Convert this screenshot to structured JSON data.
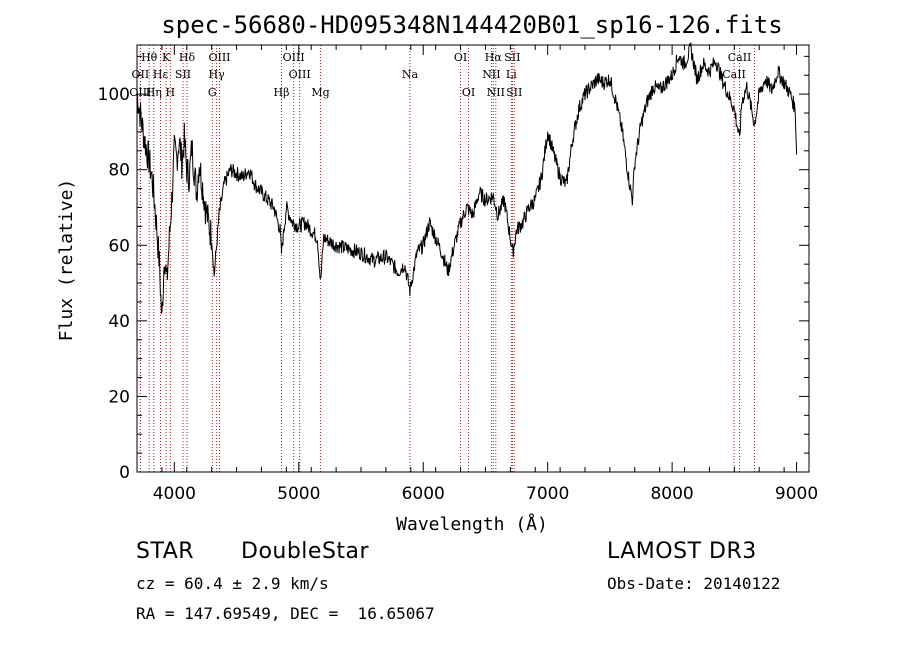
{
  "chart_data": {
    "type": "line",
    "title": "spec-56680-HD095348N144420B01_sp16-126.fits",
    "xlabel": "Wavelength (Å)",
    "ylabel": "Flux (relative)",
    "xlim": [
      3700,
      9100
    ],
    "ylim": [
      0,
      113
    ],
    "xticks": [
      4000,
      5000,
      6000,
      7000,
      8000,
      9000
    ],
    "yticks": [
      0,
      20,
      40,
      60,
      80,
      100
    ],
    "grid": false,
    "series": [
      {
        "x": [
          3700,
          3720,
          3740,
          3760,
          3780,
          3800,
          3820,
          3840,
          3860,
          3880,
          3900,
          3920,
          3940,
          3960,
          3980,
          4000,
          4020,
          4040,
          4060,
          4080,
          4100,
          4120,
          4140,
          4160,
          4180,
          4200,
          4250,
          4300,
          4320,
          4340,
          4360,
          4400,
          4450,
          4500,
          4550,
          4600,
          4650,
          4700,
          4750,
          4800,
          4850,
          4861,
          4900,
          4950,
          5000,
          5050,
          5100,
          5150,
          5175,
          5200,
          5300,
          5400,
          5500,
          5600,
          5700,
          5800,
          5850,
          5893,
          5950,
          6000,
          6050,
          6100,
          6150,
          6200,
          6250,
          6300,
          6350,
          6400,
          6450,
          6500,
          6563,
          6600,
          6650,
          6700,
          6720,
          6750,
          6800,
          6850,
          6900,
          6950,
          7000,
          7050,
          7100,
          7150,
          7200,
          7250,
          7300,
          7350,
          7400,
          7450,
          7500,
          7550,
          7600,
          7650,
          7680,
          7700,
          7750,
          7800,
          7850,
          7900,
          7950,
          8000,
          8050,
          8100,
          8150,
          8200,
          8250,
          8300,
          8350,
          8400,
          8450,
          8500,
          8542,
          8560,
          8600,
          8662,
          8700,
          8750,
          8800,
          8850,
          8900,
          8950,
          8990,
          9000
        ],
        "y": [
          100,
          96,
          92,
          88,
          85,
          82,
          78,
          72,
          64,
          55,
          40,
          58,
          50,
          62,
          72,
          85,
          83,
          88,
          82,
          88,
          80,
          78,
          86,
          80,
          74,
          82,
          70,
          62,
          52,
          60,
          68,
          76,
          80,
          79,
          78,
          80,
          76,
          74,
          72,
          70,
          64,
          58,
          70,
          66,
          65,
          66,
          64,
          62,
          50,
          62,
          60,
          59,
          58,
          56,
          57,
          53,
          55,
          48,
          58,
          60,
          66,
          62,
          58,
          53,
          60,
          66,
          70,
          68,
          74,
          72,
          73,
          68,
          72,
          62,
          58,
          64,
          66,
          70,
          72,
          78,
          90,
          84,
          78,
          76,
          88,
          96,
          100,
          102,
          104,
          103,
          104,
          98,
          90,
          78,
          72,
          82,
          92,
          98,
          102,
          101,
          103,
          105,
          110,
          108,
          112,
          104,
          108,
          106,
          109,
          104,
          100,
          96,
          88,
          98,
          102,
          92,
          100,
          104,
          101,
          106,
          103,
          100,
          96,
          84
        ]
      }
    ],
    "spectral_lines": [
      {
        "label": "Hθ",
        "x": 3798,
        "row": 0
      },
      {
        "label": "OII",
        "x": 3727,
        "row": 1
      },
      {
        "label": "OIII",
        "x": 3727,
        "row": 2
      },
      {
        "label": "K",
        "x": 3934,
        "row": 0
      },
      {
        "label": "Hε",
        "x": 3889,
        "row": 1
      },
      {
        "label": "Hη",
        "x": 3835,
        "row": 2
      },
      {
        "label": "H",
        "x": 3968,
        "row": 2
      },
      {
        "label": "SII",
        "x": 4070,
        "row": 1
      },
      {
        "label": "Hδ",
        "x": 4102,
        "row": 0
      },
      {
        "label": "OIII",
        "x": 4363,
        "row": 0
      },
      {
        "label": "Hγ",
        "x": 4340,
        "row": 1
      },
      {
        "label": "G",
        "x": 4305,
        "row": 2
      },
      {
        "label": "Hβ",
        "x": 4861,
        "row": 2
      },
      {
        "label": "OIII",
        "x": 4959,
        "row": 0
      },
      {
        "label": "OIII",
        "x": 5007,
        "row": 1
      },
      {
        "label": "Mg",
        "x": 5175,
        "row": 2
      },
      {
        "label": "Na",
        "x": 5893,
        "row": 1
      },
      {
        "label": "OI",
        "x": 6300,
        "row": 0
      },
      {
        "label": "OI",
        "x": 6364,
        "row": 2
      },
      {
        "label": "Hα",
        "x": 6563,
        "row": 0
      },
      {
        "label": "NII",
        "x": 6548,
        "row": 1
      },
      {
        "label": "NII",
        "x": 6583,
        "row": 2
      },
      {
        "label": "SII",
        "x": 6716,
        "row": 0
      },
      {
        "label": "Li",
        "x": 6708,
        "row": 1
      },
      {
        "label": "SII",
        "x": 6731,
        "row": 2
      },
      {
        "label": "CaII",
        "x": 8542,
        "row": 0
      },
      {
        "label": "CaII",
        "x": 8498,
        "row": 1
      },
      {
        "label": "",
        "x": 8662,
        "row": 0
      }
    ]
  },
  "info": {
    "class": "STAR",
    "subclass": "DoubleStar",
    "survey": "LAMOST DR3",
    "cz": "cz = 60.4 ± 2.9 km/s",
    "obsdate": "Obs-Date: 20140122",
    "radec": "RA = 147.69549, DEC =  16.65067"
  }
}
